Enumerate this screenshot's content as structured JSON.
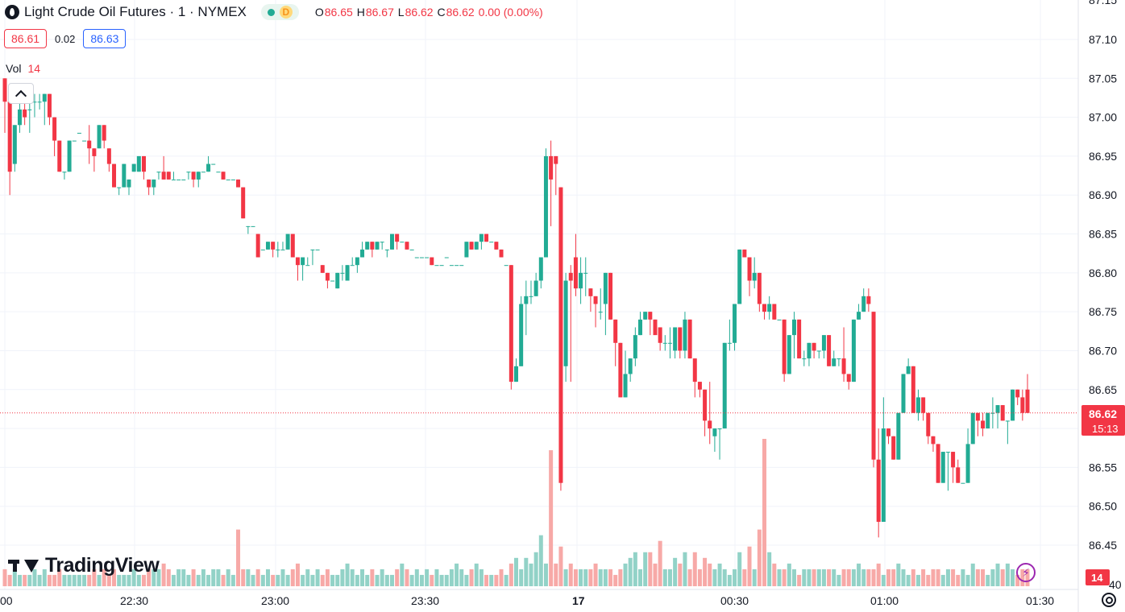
{
  "header": {
    "symbol_title": "Light Crude Oil Futures · 1 · NYMEX",
    "status_letter": "D",
    "ohlc": {
      "o_label": "O",
      "o": "86.65",
      "h_label": "H",
      "h": "86.67",
      "l_label": "L",
      "l": "86.62",
      "c_label": "C",
      "c": "86.62",
      "change": "0.00 (0.00%)"
    }
  },
  "quote": {
    "bid": "86.61",
    "spread": "0.02",
    "ask": "86.63"
  },
  "volume_legend": {
    "label": "Vol",
    "value": "14"
  },
  "branding": {
    "name": "TradingView"
  },
  "colors": {
    "up": "#22ab94",
    "down": "#f23645",
    "vol_up": "#92d2c7",
    "vol_down": "#f7a9a7",
    "grid": "#f0f3fa",
    "axis_text": "#131722",
    "price_line": "#f23645"
  },
  "icons": {
    "collapse": "chevron-up-icon",
    "alerts": "lightning-icon",
    "settings": "gear-icon",
    "logo": "tradingview-logo-icon"
  },
  "chart_data": {
    "type": "candlestick",
    "y_axis": {
      "min": 86.4,
      "max": 87.15,
      "ticks": [
        "87.10",
        "87.05",
        "87.00",
        "86.95",
        "86.90",
        "86.85",
        "86.80",
        "86.75",
        "86.70",
        "86.65",
        "86.60",
        "86.55",
        "86.50",
        "86.45"
      ],
      "partial_top": "87.15",
      "partial_bottom": "40"
    },
    "x_axis": {
      "ticks": [
        "00",
        "22:30",
        "23:00",
        "23:30",
        "17",
        "00:30",
        "01:00",
        "01:30"
      ]
    },
    "last_price": {
      "price": "86.62",
      "countdown": "15:13",
      "value": 86.62
    },
    "volume_badge": "14",
    "grid": true,
    "candles_ohlc": [
      [
        87.05,
        87.05,
        86.98,
        87.02
      ],
      [
        87.02,
        87.02,
        86.9,
        86.93
      ],
      [
        86.94,
        86.99,
        86.93,
        86.99
      ],
      [
        86.99,
        87.02,
        86.98,
        87.01
      ],
      [
        87.01,
        87.02,
        86.99,
        87.0
      ],
      [
        87.01,
        87.03,
        86.98,
        87.01
      ],
      [
        87.02,
        87.03,
        87.0,
        87.02
      ],
      [
        87.02,
        87.03,
        87.01,
        87.02
      ],
      [
        87.02,
        87.03,
        86.99,
        87.03
      ],
      [
        87.03,
        87.03,
        86.99,
        87.0
      ],
      [
        87.0,
        87.0,
        86.95,
        86.97
      ],
      [
        86.97,
        86.97,
        86.93,
        86.93
      ],
      [
        86.93,
        86.93,
        86.92,
        86.93
      ],
      [
        86.93,
        86.97,
        86.93,
        86.97
      ],
      [
        86.97,
        86.97,
        86.97,
        86.97
      ],
      [
        86.98,
        86.98,
        86.98,
        86.98
      ],
      [
        86.97,
        86.97,
        86.97,
        86.97
      ],
      [
        86.97,
        86.99,
        86.94,
        86.96
      ],
      [
        86.96,
        86.96,
        86.93,
        86.95
      ],
      [
        86.96,
        86.99,
        86.96,
        86.99
      ],
      [
        86.99,
        86.99,
        86.96,
        86.97
      ],
      [
        86.96,
        86.96,
        86.93,
        86.94
      ],
      [
        86.94,
        86.94,
        86.91,
        86.91
      ],
      [
        86.91,
        86.91,
        86.9,
        86.91
      ],
      [
        86.91,
        86.94,
        86.91,
        86.94
      ],
      [
        86.91,
        86.92,
        86.9,
        86.92
      ],
      [
        86.93,
        86.94,
        86.93,
        86.94
      ],
      [
        86.93,
        86.95,
        86.93,
        86.95
      ],
      [
        86.95,
        86.95,
        86.92,
        86.93
      ],
      [
        86.92,
        86.92,
        86.9,
        86.91
      ],
      [
        86.91,
        86.92,
        86.9,
        86.92
      ],
      [
        86.93,
        86.93,
        86.92,
        86.93
      ],
      [
        86.93,
        86.95,
        86.92,
        86.92
      ],
      [
        86.93,
        86.93,
        86.92,
        86.92
      ],
      [
        86.92,
        86.93,
        86.92,
        86.92
      ],
      [
        86.92,
        86.92,
        86.92,
        86.92
      ],
      [
        86.92,
        86.92,
        86.92,
        86.92
      ],
      [
        86.93,
        86.93,
        86.92,
        86.93
      ],
      [
        86.93,
        86.93,
        86.91,
        86.92
      ],
      [
        86.92,
        86.93,
        86.91,
        86.93
      ],
      [
        86.93,
        86.93,
        86.93,
        86.93
      ],
      [
        86.93,
        86.95,
        86.93,
        86.94
      ],
      [
        86.94,
        86.94,
        86.94,
        86.94
      ],
      [
        86.93,
        86.93,
        86.93,
        86.93
      ],
      [
        86.93,
        86.93,
        86.92,
        86.92
      ],
      [
        86.92,
        86.92,
        86.92,
        86.92
      ],
      [
        86.92,
        86.92,
        86.92,
        86.92
      ],
      [
        86.92,
        86.92,
        86.91,
        86.91
      ],
      [
        86.91,
        86.91,
        86.87,
        86.87
      ],
      [
        86.86,
        86.86,
        86.85,
        86.86
      ],
      [
        86.86,
        86.86,
        86.86,
        86.86
      ],
      [
        86.85,
        86.85,
        86.82,
        86.82
      ],
      [
        86.83,
        86.83,
        86.83,
        86.83
      ],
      [
        86.83,
        86.84,
        86.83,
        86.84
      ],
      [
        86.84,
        86.84,
        86.82,
        86.83
      ],
      [
        86.83,
        86.84,
        86.82,
        86.83
      ],
      [
        86.83,
        86.84,
        86.83,
        86.83
      ],
      [
        86.83,
        86.85,
        86.83,
        86.85
      ],
      [
        86.85,
        86.85,
        86.82,
        86.82
      ],
      [
        86.82,
        86.82,
        86.79,
        86.81
      ],
      [
        86.81,
        86.82,
        86.79,
        86.82
      ],
      [
        86.81,
        86.82,
        86.81,
        86.81
      ],
      [
        86.83,
        86.83,
        86.81,
        86.83
      ],
      [
        86.83,
        86.83,
        86.83,
        86.83
      ],
      [
        86.81,
        86.81,
        86.8,
        86.8
      ],
      [
        86.8,
        86.8,
        86.78,
        86.79
      ],
      [
        86.79,
        86.79,
        86.79,
        86.79
      ],
      [
        86.78,
        86.8,
        86.78,
        86.8
      ],
      [
        86.8,
        86.81,
        86.79,
        86.8
      ],
      [
        86.79,
        86.81,
        86.79,
        86.81
      ],
      [
        86.81,
        86.82,
        86.81,
        86.81
      ],
      [
        86.81,
        86.82,
        86.8,
        86.82
      ],
      [
        86.82,
        86.84,
        86.82,
        86.83
      ],
      [
        86.83,
        86.84,
        86.83,
        86.84
      ],
      [
        86.84,
        86.84,
        86.82,
        86.83
      ],
      [
        86.83,
        86.84,
        86.83,
        86.84
      ],
      [
        86.84,
        86.84,
        86.83,
        86.84
      ],
      [
        86.83,
        86.83,
        86.82,
        86.83
      ],
      [
        86.83,
        86.85,
        86.83,
        86.85
      ],
      [
        86.85,
        86.85,
        86.83,
        86.84
      ],
      [
        86.84,
        86.84,
        86.84,
        86.84
      ],
      [
        86.84,
        86.84,
        86.83,
        86.83
      ],
      [
        86.83,
        86.83,
        86.83,
        86.83
      ],
      [
        86.82,
        86.82,
        86.82,
        86.82
      ],
      [
        86.82,
        86.82,
        86.82,
        86.82
      ],
      [
        86.82,
        86.82,
        86.82,
        86.82
      ],
      [
        86.82,
        86.82,
        86.81,
        86.81
      ],
      [
        86.81,
        86.81,
        86.81,
        86.81
      ],
      [
        86.81,
        86.81,
        86.81,
        86.81
      ],
      [
        86.82,
        86.82,
        86.82,
        86.82
      ],
      [
        86.81,
        86.81,
        86.81,
        86.81
      ],
      [
        86.81,
        86.81,
        86.81,
        86.81
      ],
      [
        86.81,
        86.81,
        86.81,
        86.81
      ],
      [
        86.82,
        86.84,
        86.82,
        86.84
      ],
      [
        86.84,
        86.84,
        86.83,
        86.83
      ],
      [
        86.83,
        86.84,
        86.83,
        86.84
      ],
      [
        86.84,
        86.85,
        86.83,
        86.85
      ],
      [
        86.85,
        86.85,
        86.84,
        86.84
      ],
      [
        86.84,
        86.84,
        86.84,
        86.84
      ],
      [
        86.84,
        86.84,
        86.83,
        86.83
      ],
      [
        86.83,
        86.83,
        86.82,
        86.82
      ],
      [
        86.81,
        86.81,
        86.81,
        86.81
      ],
      [
        86.81,
        86.81,
        86.65,
        86.66
      ],
      [
        86.66,
        86.69,
        86.66,
        86.68
      ],
      [
        86.68,
        86.77,
        86.68,
        86.76
      ],
      [
        86.76,
        86.79,
        86.72,
        86.77
      ],
      [
        86.77,
        86.79,
        86.76,
        86.77
      ],
      [
        86.77,
        86.8,
        86.77,
        86.79
      ],
      [
        86.79,
        86.82,
        86.78,
        86.82
      ],
      [
        86.82,
        86.96,
        86.82,
        86.95
      ],
      [
        86.95,
        86.97,
        86.86,
        86.92
      ],
      [
        86.95,
        86.95,
        86.9,
        86.94
      ],
      [
        86.91,
        86.91,
        86.52,
        86.53
      ],
      [
        86.68,
        86.8,
        86.66,
        86.79
      ],
      [
        86.8,
        86.81,
        86.66,
        86.79
      ],
      [
        86.82,
        86.85,
        86.77,
        86.78
      ],
      [
        86.78,
        86.82,
        86.76,
        86.8
      ],
      [
        86.8,
        86.82,
        86.77,
        86.8
      ],
      [
        86.78,
        86.78,
        86.75,
        86.77
      ],
      [
        86.77,
        86.77,
        86.73,
        86.76
      ],
      [
        86.75,
        86.78,
        86.74,
        86.75
      ],
      [
        86.76,
        86.8,
        86.72,
        86.8
      ],
      [
        86.8,
        86.8,
        86.74,
        86.74
      ],
      [
        86.74,
        86.74,
        86.68,
        86.71
      ],
      [
        86.71,
        86.71,
        86.64,
        86.64
      ],
      [
        86.64,
        86.7,
        86.64,
        86.67
      ],
      [
        86.67,
        86.69,
        86.66,
        86.69
      ],
      [
        86.69,
        86.73,
        86.68,
        86.72
      ],
      [
        86.72,
        86.75,
        86.72,
        86.74
      ],
      [
        86.74,
        86.75,
        86.74,
        86.75
      ],
      [
        86.75,
        86.75,
        86.72,
        86.74
      ],
      [
        86.74,
        86.74,
        86.73,
        86.72
      ],
      [
        86.73,
        86.73,
        86.7,
        86.71
      ],
      [
        86.71,
        86.72,
        86.7,
        86.71
      ],
      [
        86.71,
        86.73,
        86.69,
        86.71
      ],
      [
        86.7,
        86.73,
        86.69,
        86.73
      ],
      [
        86.73,
        86.73,
        86.69,
        86.7
      ],
      [
        86.7,
        86.75,
        86.69,
        86.74
      ],
      [
        86.74,
        86.74,
        86.69,
        86.69
      ],
      [
        86.69,
        86.69,
        86.64,
        86.66
      ],
      [
        86.66,
        86.66,
        86.64,
        86.65
      ],
      [
        86.65,
        86.65,
        86.59,
        86.61
      ],
      [
        86.61,
        86.66,
        86.58,
        86.6
      ],
      [
        86.59,
        86.6,
        86.57,
        86.6
      ],
      [
        86.6,
        86.6,
        86.56,
        86.6
      ],
      [
        86.6,
        86.71,
        86.6,
        86.71
      ],
      [
        86.71,
        86.74,
        86.7,
        86.71
      ],
      [
        86.71,
        86.76,
        86.7,
        86.76
      ],
      [
        86.76,
        86.83,
        86.76,
        86.83
      ],
      [
        86.83,
        86.83,
        86.82,
        86.82
      ],
      [
        86.82,
        86.82,
        86.77,
        86.79
      ],
      [
        86.79,
        86.82,
        86.78,
        86.8
      ],
      [
        86.8,
        86.8,
        86.75,
        86.76
      ],
      [
        86.76,
        86.76,
        86.74,
        86.75
      ],
      [
        86.75,
        86.77,
        86.74,
        86.76
      ],
      [
        86.76,
        86.76,
        86.74,
        86.74
      ],
      [
        86.74,
        86.74,
        86.74,
        86.74
      ],
      [
        86.74,
        86.74,
        86.66,
        86.67
      ],
      [
        86.67,
        86.72,
        86.67,
        86.72
      ],
      [
        86.72,
        86.75,
        86.69,
        86.74
      ],
      [
        86.74,
        86.74,
        86.69,
        86.69
      ],
      [
        86.69,
        86.7,
        86.68,
        86.69
      ],
      [
        86.69,
        86.71,
        86.68,
        86.71
      ],
      [
        86.71,
        86.71,
        86.69,
        86.7
      ],
      [
        86.7,
        86.7,
        86.69,
        86.7
      ],
      [
        86.7,
        86.72,
        86.69,
        86.72
      ],
      [
        86.72,
        86.72,
        86.68,
        86.68
      ],
      [
        86.68,
        86.7,
        86.68,
        86.69
      ],
      [
        86.69,
        86.69,
        86.68,
        86.69
      ],
      [
        86.69,
        86.73,
        86.66,
        86.67
      ],
      [
        86.67,
        86.67,
        86.65,
        86.66
      ],
      [
        86.66,
        86.74,
        86.66,
        86.74
      ],
      [
        86.74,
        86.76,
        86.74,
        86.75
      ],
      [
        86.75,
        86.78,
        86.75,
        86.77
      ],
      [
        86.77,
        86.78,
        86.75,
        86.76
      ],
      [
        86.75,
        86.75,
        86.55,
        86.56
      ],
      [
        86.56,
        86.6,
        86.46,
        86.48
      ],
      [
        86.48,
        86.64,
        86.48,
        86.6
      ],
      [
        86.6,
        86.6,
        86.58,
        86.59
      ],
      [
        86.59,
        86.59,
        86.56,
        86.56
      ],
      [
        86.56,
        86.62,
        86.56,
        86.62
      ],
      [
        86.62,
        86.67,
        86.62,
        86.67
      ],
      [
        86.67,
        86.69,
        86.67,
        86.68
      ],
      [
        86.68,
        86.68,
        86.62,
        86.62
      ],
      [
        86.62,
        86.65,
        86.61,
        86.64
      ],
      [
        86.64,
        86.64,
        86.61,
        86.62
      ],
      [
        86.62,
        86.62,
        86.58,
        86.59
      ],
      [
        86.59,
        86.59,
        86.57,
        86.58
      ],
      [
        86.58,
        86.58,
        86.53,
        86.53
      ],
      [
        86.53,
        86.57,
        86.53,
        86.57
      ],
      [
        86.57,
        86.57,
        86.52,
        86.57
      ],
      [
        86.57,
        86.57,
        86.53,
        86.55
      ],
      [
        86.55,
        86.56,
        86.53,
        86.53
      ],
      [
        86.53,
        86.53,
        86.53,
        86.53
      ],
      [
        86.53,
        86.6,
        86.53,
        86.58
      ],
      [
        86.58,
        86.62,
        86.58,
        86.62
      ],
      [
        86.62,
        86.62,
        86.59,
        86.61
      ],
      [
        86.61,
        86.62,
        86.59,
        86.6
      ],
      [
        86.6,
        86.62,
        86.6,
        86.62
      ],
      [
        86.62,
        86.64,
        86.6,
        86.62
      ],
      [
        86.62,
        86.63,
        86.6,
        86.63
      ],
      [
        86.63,
        86.63,
        86.61,
        86.61
      ],
      [
        86.61,
        86.61,
        86.58,
        86.61
      ],
      [
        86.61,
        86.65,
        86.61,
        86.65
      ],
      [
        86.65,
        86.65,
        86.63,
        86.64
      ],
      [
        86.64,
        86.65,
        86.61,
        86.62
      ],
      [
        86.65,
        86.67,
        86.62,
        86.62
      ]
    ],
    "volume": [
      3,
      2,
      3,
      2,
      2,
      2,
      3,
      2,
      3,
      2,
      2,
      3,
      2,
      2,
      2,
      2,
      2,
      2,
      3,
      2,
      3,
      2,
      3,
      2,
      2,
      2,
      3,
      2,
      2,
      3,
      3,
      3,
      4,
      3,
      2,
      3,
      3,
      2,
      3,
      2,
      3,
      2,
      3,
      3,
      2,
      3,
      2,
      10,
      3,
      3,
      2,
      3,
      2,
      3,
      2,
      2,
      3,
      2,
      3,
      4,
      2,
      3,
      2,
      3,
      2,
      3,
      2,
      2,
      3,
      4,
      3,
      2,
      3,
      2,
      3,
      2,
      3,
      2,
      2,
      3,
      4,
      3,
      2,
      3,
      2,
      3,
      2,
      3,
      2,
      2,
      3,
      4,
      3,
      2,
      3,
      4,
      3,
      2,
      2,
      2,
      3,
      2,
      4,
      5,
      3,
      5,
      4,
      6,
      9,
      4,
      24,
      4,
      7,
      3,
      4,
      3,
      3,
      3,
      3,
      4,
      3,
      3,
      3,
      2,
      3,
      4,
      5,
      6,
      3,
      6,
      6,
      4,
      8,
      3,
      3,
      5,
      4,
      6,
      3,
      6,
      3,
      5,
      4,
      3,
      4,
      3,
      2,
      3,
      6,
      3,
      7,
      3,
      10,
      26,
      6,
      4,
      3,
      3,
      4,
      3,
      2,
      3,
      3,
      3,
      3,
      3,
      3,
      3,
      2,
      3,
      3,
      3,
      4,
      3,
      3,
      3,
      4,
      2,
      3,
      3,
      4,
      3,
      2,
      3,
      2,
      3,
      2,
      3,
      3,
      2,
      3,
      3,
      2,
      3,
      2,
      4,
      3,
      3,
      2,
      3,
      4,
      3,
      4,
      3,
      2,
      3,
      3,
      2,
      3,
      3,
      3,
      3,
      3,
      3,
      3,
      3,
      3,
      4,
      3
    ]
  }
}
